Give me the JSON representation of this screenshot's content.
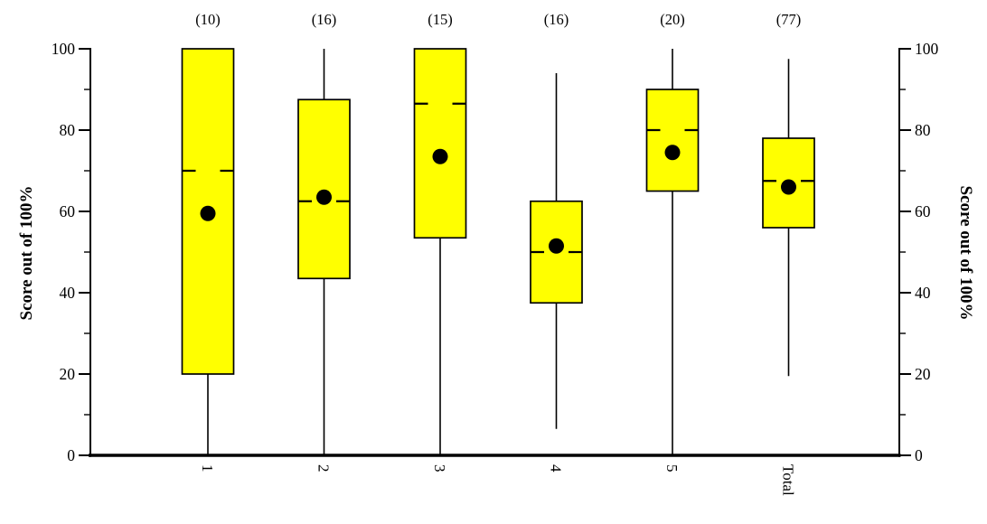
{
  "chart_data": {
    "type": "boxplot",
    "title": "",
    "ylabel_left": "Score out of 100%",
    "ylabel_right": "Score out of 100%",
    "ylim": [
      0,
      100
    ],
    "ytick_labels": [
      "0",
      "20",
      "40",
      "60",
      "80",
      "100"
    ],
    "yticks_major": [
      0,
      20,
      40,
      60,
      80,
      100
    ],
    "yticks_minor": [
      10,
      30,
      50,
      70,
      90
    ],
    "grid": "off",
    "legend": "none",
    "box_fill_color": "#ffff00",
    "stroke_color": "#000000",
    "categories": [
      "1",
      "2",
      "3",
      "4",
      "5",
      "Total"
    ],
    "counts": [
      "(10)",
      "(16)",
      "(15)",
      "(16)",
      "(20)",
      "(77)"
    ],
    "boxes": [
      {
        "label": "1",
        "count": 10,
        "whisker_low": 0,
        "q1": 20,
        "median": 70,
        "q3": 100,
        "whisker_high": 100,
        "mean": 59.5
      },
      {
        "label": "2",
        "count": 16,
        "whisker_low": 0,
        "q1": 43.5,
        "median": 62.5,
        "q3": 87.5,
        "whisker_high": 100,
        "mean": 63.5
      },
      {
        "label": "3",
        "count": 15,
        "whisker_low": 0,
        "q1": 53.5,
        "median": 86.5,
        "q3": 100,
        "whisker_high": 100,
        "mean": 73.5
      },
      {
        "label": "4",
        "count": 16,
        "whisker_low": 6.5,
        "q1": 37.5,
        "median": 50,
        "q3": 62.5,
        "whisker_high": 94,
        "mean": 51.5
      },
      {
        "label": "5",
        "count": 20,
        "whisker_low": 0,
        "q1": 65,
        "median": 80,
        "q3": 90,
        "whisker_high": 100,
        "mean": 74.5
      },
      {
        "label": "Total",
        "count": 77,
        "whisker_low": 19.5,
        "q1": 56,
        "median": 67.5,
        "q3": 78,
        "whisker_high": 97.5,
        "mean": 66
      }
    ]
  }
}
